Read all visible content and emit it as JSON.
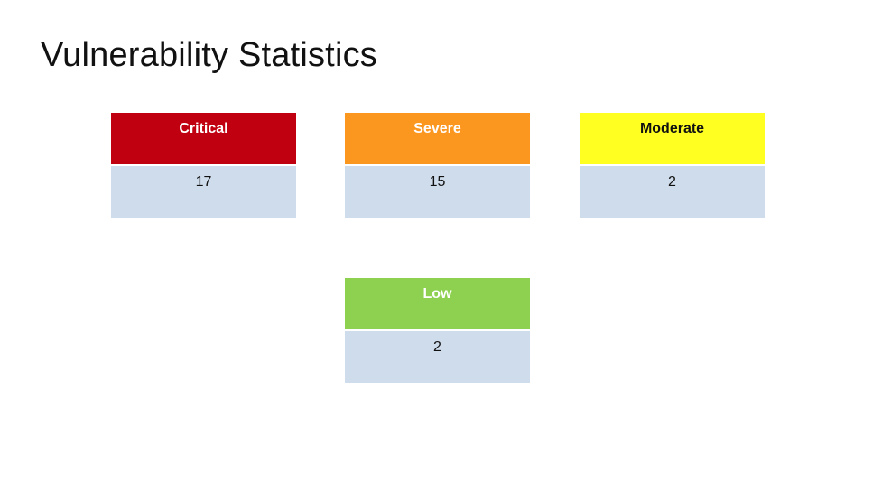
{
  "title": "Vulnerability Statistics",
  "colors": {
    "critical": "#c00010",
    "severe": "#fb961f",
    "moderate": "#ffff22",
    "low": "#8ed150",
    "value_bg": "#cfdcec"
  },
  "cards": {
    "critical": {
      "label": "Critical",
      "value": "17"
    },
    "severe": {
      "label": "Severe",
      "value": "15"
    },
    "moderate": {
      "label": "Moderate",
      "value": "2"
    },
    "low": {
      "label": "Low",
      "value": "2"
    }
  }
}
